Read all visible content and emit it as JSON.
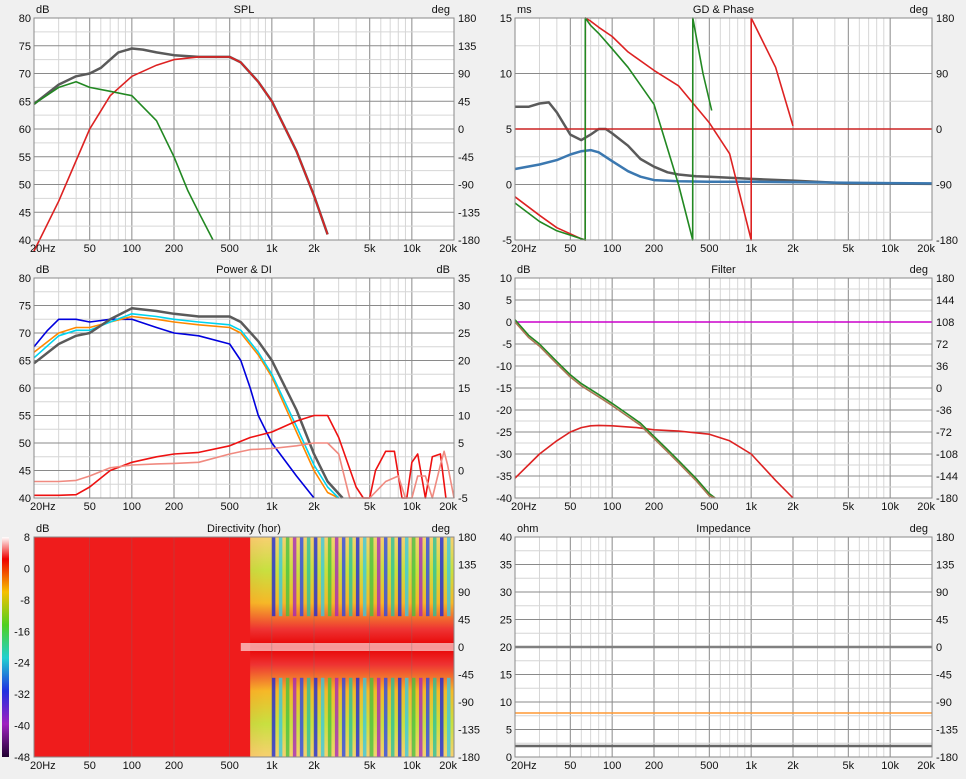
{
  "chart_data": [
    {
      "type": "line",
      "title": "SPL",
      "ylabel": "dB",
      "y2label": "deg",
      "xscale": "log",
      "xlim": [
        20,
        20000
      ],
      "ylim": [
        40,
        80
      ],
      "y2lim": [
        -180,
        180
      ],
      "xticks": [
        "20Hz",
        "50",
        "100",
        "200",
        "500",
        "1k",
        "2k",
        "5k",
        "10k",
        "20k"
      ],
      "yticks": [
        "80",
        "75",
        "70",
        "65",
        "60",
        "55",
        "50",
        "45",
        "40"
      ],
      "y2ticks": [
        "180",
        "135",
        "90",
        "45",
        "0",
        "-45",
        "-90",
        "-135",
        "-180"
      ],
      "grid": true,
      "series": [
        {
          "color": "#5a5a5a",
          "axis": "y",
          "x": [
            20,
            30,
            40,
            50,
            60,
            70,
            80,
            100,
            120,
            150,
            200,
            300,
            400,
            500,
            600,
            800,
            1000,
            1500,
            2000,
            2500
          ],
          "values": [
            64.5,
            68,
            69.5,
            70,
            71,
            72.5,
            73.8,
            74.5,
            74.3,
            73.8,
            73.3,
            73,
            73,
            73,
            72,
            68.5,
            65,
            56,
            48,
            41
          ]
        },
        {
          "color": "#dd2222",
          "axis": "y",
          "x": [
            20,
            30,
            50,
            70,
            100,
            150,
            200,
            300,
            400,
            500,
            600,
            800,
            1000,
            1500,
            2000,
            2500
          ],
          "values": [
            38,
            47,
            60,
            66,
            69.5,
            71.5,
            72.5,
            73,
            73,
            73,
            72,
            68.5,
            65,
            56,
            48,
            41
          ]
        },
        {
          "color": "#228822",
          "axis": "y",
          "x": [
            20,
            30,
            40,
            50,
            70,
            100,
            150,
            200,
            250,
            300,
            380
          ],
          "values": [
            64.5,
            67.5,
            68.5,
            67.5,
            66.8,
            66,
            61.5,
            55,
            49,
            45,
            40
          ]
        }
      ]
    },
    {
      "type": "line",
      "title": "GD & Phase",
      "ylabel": "ms",
      "y2label": "deg",
      "xscale": "log",
      "xlim": [
        20,
        20000
      ],
      "ylim": [
        -5,
        15
      ],
      "y2lim": [
        -180,
        180
      ],
      "xticks": [
        "20Hz",
        "50",
        "100",
        "200",
        "500",
        "1k",
        "2k",
        "5k",
        "10k",
        "20k"
      ],
      "yticks": [
        "15",
        "10",
        "5",
        "0",
        "-5"
      ],
      "y2ticks": [
        "180",
        "90",
        "0",
        "-90",
        "-180"
      ],
      "grid": true,
      "series": [
        {
          "color": "#5a5a5a",
          "axis": "y",
          "x": [
            20,
            25,
            30,
            35,
            40,
            50,
            60,
            70,
            80,
            90,
            100,
            130,
            160,
            200,
            250,
            300,
            400,
            500,
            700,
            1000,
            2000,
            5000,
            20000
          ],
          "values": [
            7,
            7,
            7.3,
            7.4,
            6.5,
            4.5,
            4,
            4.5,
            5,
            5,
            4.6,
            3.5,
            2.3,
            1.6,
            1.1,
            0.9,
            0.75,
            0.7,
            0.6,
            0.5,
            0.35,
            0.1,
            0.05
          ]
        },
        {
          "color": "#3b78b0",
          "axis": "y",
          "x": [
            20,
            30,
            40,
            50,
            60,
            70,
            80,
            100,
            130,
            160,
            200,
            300,
            500,
            1000,
            5000,
            20000
          ],
          "values": [
            1.4,
            1.8,
            2.2,
            2.7,
            3,
            3.1,
            2.9,
            2.1,
            1.2,
            0.7,
            0.4,
            0.3,
            0.25,
            0.25,
            0.15,
            0.1
          ]
        },
        {
          "color": "#cc2222",
          "axis": "y",
          "x": [
            20,
            20000
          ],
          "values": [
            5,
            5
          ]
        },
        {
          "color": "#dd2222",
          "axis": "y2",
          "x": [
            20,
            30,
            40,
            50,
            60,
            64,
            64.1,
            70,
            80,
            100,
            130,
            200,
            300,
            500,
            700,
            1000,
            1000.1,
            1500,
            2000
          ],
          "values": [
            -110,
            -140,
            -160,
            -170,
            -178,
            -180,
            180,
            175,
            165,
            150,
            125,
            95,
            70,
            10,
            -40,
            -180,
            180,
            100,
            5
          ]
        },
        {
          "color": "#228822",
          "axis": "y2",
          "x": [
            20,
            30,
            40,
            50,
            60,
            64,
            64.1,
            70,
            80,
            100,
            130,
            200,
            300,
            380,
            380.1,
            450,
            520
          ],
          "values": [
            -120,
            -150,
            -165,
            -172,
            -178,
            -180,
            180,
            168,
            155,
            130,
            100,
            40,
            -90,
            -180,
            180,
            90,
            30
          ]
        }
      ]
    },
    {
      "type": "line",
      "title": "Power & DI",
      "ylabel": "dB",
      "y2label": "dB",
      "xscale": "log",
      "xlim": [
        20,
        20000
      ],
      "ylim": [
        40,
        80
      ],
      "y2lim": [
        -5,
        35
      ],
      "xticks": [
        "20Hz",
        "50",
        "100",
        "200",
        "500",
        "1k",
        "2k",
        "5k",
        "10k",
        "20k"
      ],
      "yticks": [
        "80",
        "75",
        "70",
        "65",
        "60",
        "55",
        "50",
        "45",
        "40"
      ],
      "y2ticks": [
        "35",
        "30",
        "25",
        "20",
        "15",
        "10",
        "5",
        "0",
        "-5"
      ],
      "grid": true,
      "series": [
        {
          "color": "#0000dd",
          "axis": "y",
          "x": [
            20,
            25,
            30,
            40,
            50,
            70,
            100,
            150,
            200,
            300,
            500,
            600,
            700,
            800,
            1000,
            1500,
            2000
          ],
          "values": [
            67.5,
            70.5,
            72.5,
            72.5,
            72,
            72.5,
            72.5,
            71,
            70,
            69.5,
            68,
            65,
            60,
            55,
            50,
            44,
            40
          ]
        },
        {
          "color": "#ff8800",
          "axis": "y",
          "x": [
            20,
            30,
            40,
            50,
            70,
            100,
            150,
            200,
            300,
            500,
            600,
            800,
            1000,
            1500,
            2000,
            2500,
            3000
          ],
          "values": [
            66.5,
            70,
            71,
            71,
            72,
            73,
            72.5,
            72,
            71.5,
            71,
            70,
            66,
            62,
            52,
            45,
            41,
            40
          ]
        },
        {
          "color": "#00d4ee",
          "axis": "y",
          "x": [
            20,
            30,
            40,
            50,
            70,
            100,
            150,
            200,
            300,
            500,
            600,
            800,
            1000,
            1500,
            2000,
            2500,
            3000
          ],
          "values": [
            65.5,
            69.5,
            70.5,
            70.5,
            72,
            73.5,
            73,
            72.5,
            72,
            71.5,
            70.5,
            66.5,
            62.5,
            53,
            46,
            42,
            40
          ]
        },
        {
          "color": "#5a5a5a",
          "axis": "y",
          "x": [
            20,
            30,
            40,
            50,
            70,
            100,
            150,
            200,
            300,
            500,
            600,
            800,
            1000,
            1500,
            2000,
            2500,
            3200
          ],
          "values": [
            64.5,
            68,
            69.5,
            70,
            72.5,
            74.5,
            74,
            73.5,
            73,
            73,
            72,
            68.5,
            65,
            56,
            48,
            43,
            40
          ]
        },
        {
          "color": "#ee1111",
          "axis": "y2",
          "x": [
            20,
            30,
            40,
            50,
            70,
            100,
            150,
            200,
            300,
            500,
            700,
            1000,
            1500,
            2000,
            2500,
            3000,
            4000,
            4500,
            5000,
            5500,
            6500,
            7500,
            8500,
            9200,
            10000,
            11000,
            12500,
            14000,
            16000,
            17500
          ],
          "values": [
            -4.5,
            -4.5,
            -4.4,
            -3,
            0,
            1.5,
            2.5,
            3,
            3.3,
            4.5,
            6,
            7,
            9,
            10,
            10,
            6,
            -3,
            -5,
            -5,
            0,
            3.5,
            3.5,
            -5,
            -5,
            1.5,
            3,
            -5,
            2.5,
            3,
            -5
          ]
        },
        {
          "color": "#f08a80",
          "axis": "y2",
          "x": [
            20,
            30,
            40,
            50,
            70,
            100,
            150,
            200,
            300,
            500,
            700,
            1000,
            1500,
            2000,
            2500,
            3000,
            3600,
            4000,
            4500,
            5000,
            6500,
            8000,
            9000,
            10000,
            11000,
            12500,
            14000,
            16000,
            17000,
            18000,
            20000
          ],
          "values": [
            -2,
            -2,
            -1.8,
            -1,
            0.5,
            1,
            1.2,
            1.3,
            1.5,
            3,
            3.8,
            4,
            4.5,
            5,
            5,
            3,
            -5,
            -5,
            -5,
            -5,
            -2,
            -1,
            -5,
            -5,
            -1,
            -1,
            -5,
            1,
            3.5,
            1,
            -5
          ]
        }
      ]
    },
    {
      "type": "line",
      "title": "Filter",
      "ylabel": "dB",
      "y2label": "deg",
      "xscale": "log",
      "xlim": [
        20,
        20000
      ],
      "ylim": [
        -40,
        10
      ],
      "y2lim": [
        -180,
        180
      ],
      "xticks": [
        "20Hz",
        "50",
        "100",
        "200",
        "500",
        "1k",
        "2k",
        "5k",
        "10k",
        "20k"
      ],
      "yticks": [
        "10",
        "5",
        "0",
        "-5",
        "-10",
        "-15",
        "-20",
        "-25",
        "-30",
        "-35",
        "-40"
      ],
      "y2ticks": [
        "180",
        "144",
        "108",
        "72",
        "36",
        "0",
        "-36",
        "-72",
        "-108",
        "-144",
        "-180"
      ],
      "grid": true,
      "series": [
        {
          "color": "#cc00cc",
          "axis": "y",
          "x": [
            20,
            20000
          ],
          "values": [
            0,
            0
          ]
        },
        {
          "color": "#dd2222",
          "axis": "y",
          "x": [
            20,
            30,
            40,
            50,
            60,
            70,
            80,
            100,
            150,
            200,
            300,
            500,
            700,
            1000,
            1500,
            2000
          ],
          "values": [
            -35.5,
            -30,
            -27,
            -25,
            -24,
            -23.6,
            -23.5,
            -23.6,
            -24,
            -24.5,
            -24.8,
            -25.5,
            -27,
            -30,
            -36,
            -40
          ]
        },
        {
          "color": "#228822",
          "axis": "y",
          "x": [
            20,
            25,
            30,
            40,
            50,
            60,
            80,
            100,
            130,
            160,
            200,
            250,
            300,
            400,
            500,
            550
          ],
          "values": [
            0.5,
            -3,
            -5,
            -9,
            -12,
            -14,
            -16.5,
            -18.5,
            -21,
            -23,
            -26,
            -29,
            -31.5,
            -35.5,
            -39,
            -40
          ]
        },
        {
          "color": "#aa7755",
          "axis": "y",
          "x": [
            20,
            25,
            30,
            40,
            50,
            60,
            80,
            100,
            130,
            160,
            200,
            250,
            300,
            400,
            500,
            550
          ],
          "values": [
            0,
            -3.5,
            -5.5,
            -9.5,
            -12.5,
            -14.5,
            -17,
            -19,
            -21.5,
            -23.5,
            -26.5,
            -29.5,
            -32,
            -36,
            -39.5,
            -40
          ]
        }
      ]
    },
    {
      "type": "heatmap",
      "title": "Directivity (hor)",
      "ylabel": "dB",
      "y2label": "deg",
      "xscale": "log",
      "xlim": [
        20,
        20000
      ],
      "y2lim": [
        -180,
        180
      ],
      "xticks": [
        "20Hz",
        "50",
        "100",
        "200",
        "500",
        "1k",
        "2k",
        "5k",
        "10k",
        "20k"
      ],
      "y2ticks": [
        "180",
        "135",
        "90",
        "45",
        "0",
        "-45",
        "-90",
        "-135",
        "-180"
      ],
      "colorbar_ticks": [
        "8",
        "0",
        "-8",
        "-16",
        "-24",
        "-32",
        "-40",
        "-48"
      ],
      "colorbar_range": [
        -48,
        8
      ]
    },
    {
      "type": "line",
      "title": "Impedance",
      "ylabel": "ohm",
      "y2label": "deg",
      "xscale": "log",
      "xlim": [
        20,
        20000
      ],
      "ylim": [
        0,
        40
      ],
      "y2lim": [
        -180,
        180
      ],
      "xticks": [
        "20Hz",
        "50",
        "100",
        "200",
        "500",
        "1k",
        "2k",
        "5k",
        "10k",
        "20k"
      ],
      "yticks": [
        "40",
        "35",
        "30",
        "25",
        "20",
        "15",
        "10",
        "5",
        "0"
      ],
      "y2ticks": [
        "180",
        "135",
        "90",
        "45",
        "0",
        "-45",
        "-90",
        "-135",
        "-180"
      ],
      "grid": true,
      "series": [
        {
          "color": "#808080",
          "axis": "y",
          "x": [
            20,
            20000
          ],
          "values": [
            20,
            20
          ]
        },
        {
          "color": "#ff9933",
          "axis": "y",
          "x": [
            20,
            20000
          ],
          "values": [
            8,
            8
          ]
        },
        {
          "color": "#666666",
          "axis": "y",
          "x": [
            20,
            20000
          ],
          "values": [
            2,
            2
          ]
        }
      ]
    }
  ]
}
